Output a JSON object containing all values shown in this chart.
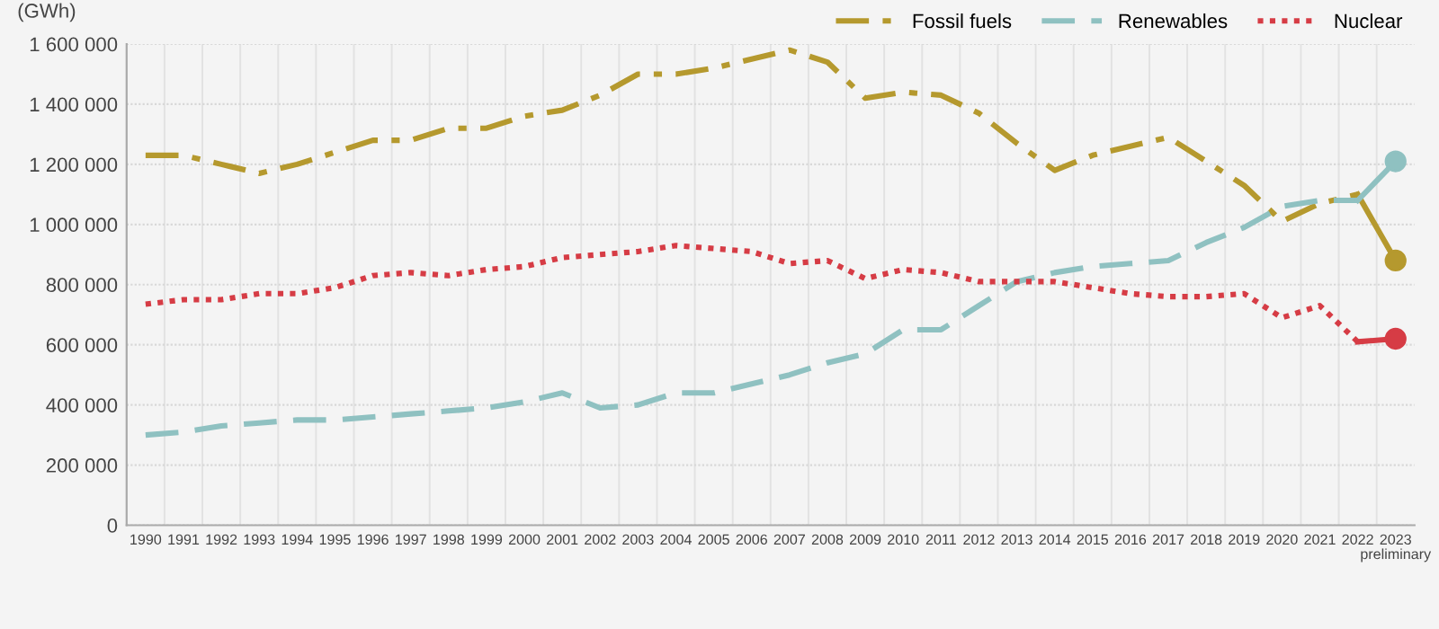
{
  "chart_data": {
    "type": "line",
    "ylabel": "(GWh)",
    "categories": [
      "1990",
      "1991",
      "1992",
      "1993",
      "1994",
      "1995",
      "1996",
      "1997",
      "1998",
      "1999",
      "2000",
      "2001",
      "2002",
      "2003",
      "2004",
      "2005",
      "2006",
      "2007",
      "2008",
      "2009",
      "2010",
      "2011",
      "2012",
      "2013",
      "2014",
      "2015",
      "2016",
      "2017",
      "2018",
      "2019",
      "2020",
      "2021",
      "2022",
      "2023\npreliminary"
    ],
    "series": [
      {
        "name": "Fossil fuels",
        "color": "#b5992e",
        "line_style": "dashdot",
        "values": [
          1230000,
          1230000,
          1200000,
          1170000,
          1200000,
          1240000,
          1280000,
          1280000,
          1320000,
          1320000,
          1360000,
          1380000,
          1430000,
          1500000,
          1500000,
          1520000,
          1550000,
          1580000,
          1540000,
          1420000,
          1440000,
          1430000,
          1370000,
          1270000,
          1180000,
          1230000,
          1260000,
          1290000,
          1210000,
          1130000,
          1010000,
          1070000,
          1100000,
          880000
        ]
      },
      {
        "name": "Renewables",
        "color": "#8fc1c1",
        "line_style": "dashed",
        "values": [
          300000,
          310000,
          330000,
          340000,
          350000,
          350000,
          360000,
          370000,
          380000,
          390000,
          410000,
          440000,
          390000,
          400000,
          440000,
          440000,
          470000,
          500000,
          540000,
          570000,
          650000,
          650000,
          730000,
          810000,
          840000,
          860000,
          870000,
          880000,
          940000,
          990000,
          1060000,
          1080000,
          1080000,
          1210000
        ]
      },
      {
        "name": "Nuclear",
        "color": "#d63c45",
        "line_style": "dotted",
        "values": [
          735000,
          750000,
          750000,
          770000,
          770000,
          790000,
          830000,
          840000,
          830000,
          850000,
          860000,
          890000,
          900000,
          910000,
          930000,
          920000,
          910000,
          870000,
          880000,
          820000,
          850000,
          840000,
          810000,
          810000,
          810000,
          790000,
          770000,
          760000,
          760000,
          770000,
          690000,
          730000,
          610000,
          620000
        ]
      }
    ],
    "ylim": [
      0,
      1600000
    ],
    "yticks": [
      0,
      {
        "value": 200000,
        "label": "200 000"
      },
      {
        "value": 400000,
        "label": "400 000"
      },
      {
        "value": 600000,
        "label": "600 000"
      },
      {
        "value": 800000,
        "label": "800 000"
      },
      {
        "value": 1000000,
        "label": "1 000 000"
      },
      {
        "value": 1200000,
        "label": "1 200 000"
      },
      {
        "value": 1400000,
        "label": "1 400 000"
      },
      {
        "value": 1600000,
        "label": "1 600 000"
      }
    ],
    "grid": true,
    "legend": "top right"
  }
}
